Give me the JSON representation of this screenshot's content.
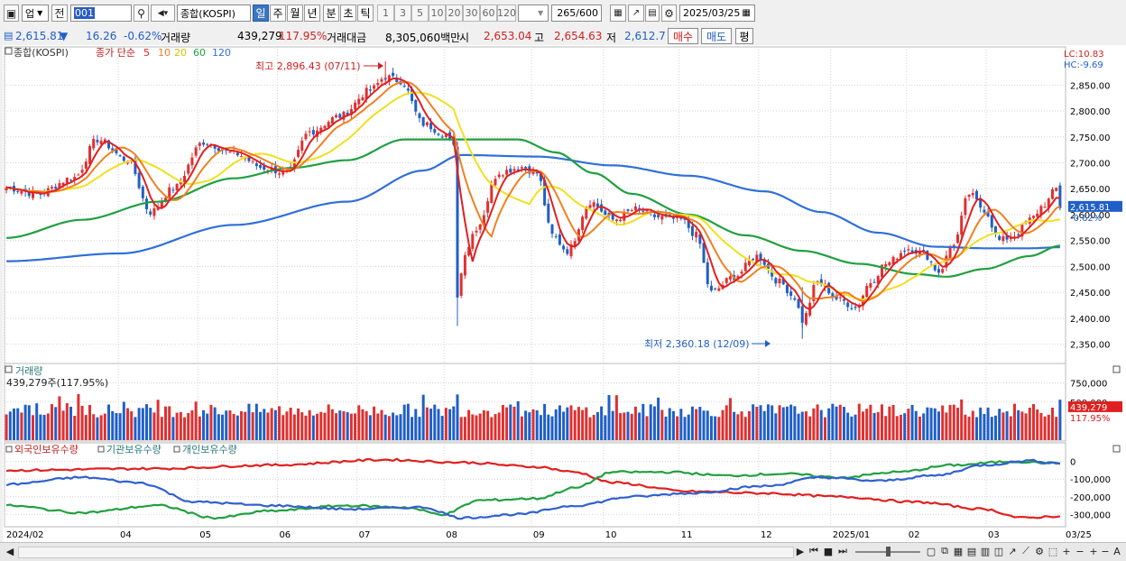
{
  "toolbar": {
    "market": "업",
    "prev_label": "전",
    "code": "001",
    "stock_name": "종합(KOSPI)",
    "period_tabs": [
      "일",
      "주",
      "월",
      "년",
      "분",
      "초",
      "틱"
    ],
    "active_tab": "일",
    "minute_values": [
      "1",
      "3",
      "5",
      "10",
      "20",
      "30",
      "60",
      "120"
    ],
    "count": "265",
    "count_max": "/600",
    "date": "2025/03/25"
  },
  "quote": {
    "price": "2,615.81",
    "arrow": "▼",
    "change": "16.26",
    "change_pct": "-0.62%",
    "volume_label": "거래량",
    "volume": "439,279",
    "volume_ratio": "117.95%",
    "amount_label": "거래대금",
    "amount": "8,305,060백만",
    "open_label": "시",
    "open": "2,653.04",
    "high_label": "고",
    "high": "2,654.63",
    "low_label": "저",
    "low": "2,612.7",
    "buy": "매수",
    "sell": "매도",
    "eval": "평"
  },
  "chart_data": [
    {
      "type": "candlestick",
      "title": "종합(KOSPI)",
      "legend": [
        "종가 단순",
        "5",
        "10",
        "20",
        "60",
        "120"
      ],
      "colors": {
        "up": "#e03030",
        "down": "#1f5fc8",
        "ma5": "#e02020",
        "ma10": "#f08020",
        "ma20": "#f0e020",
        "ma60": "#20a040",
        "ma120": "#3070d8"
      },
      "y_ticks": [
        "2,850.00",
        "2,800.00",
        "2,750.00",
        "2,700.00",
        "2,650.00",
        "2,600.00",
        "2,550.00",
        "2,500.00",
        "2,450.00",
        "2,400.00",
        "2,350.00"
      ],
      "ylim": [
        2330,
        2915
      ],
      "lc": "LC:10.83",
      "hc": "HC:-9.69",
      "high_annotation": "최고 2,896.43 (07/11)",
      "low_annotation": "최저 2,360.18 (12/09)",
      "last_label": "2,615.81",
      "last_pct": "-0.62%",
      "close_anchors": [
        [
          0,
          2652
        ],
        [
          8,
          2640
        ],
        [
          18,
          2672
        ],
        [
          24,
          2745
        ],
        [
          32,
          2705
        ],
        [
          38,
          2605
        ],
        [
          44,
          2650
        ],
        [
          52,
          2740
        ],
        [
          60,
          2718
        ],
        [
          68,
          2690
        ],
        [
          74,
          2680
        ],
        [
          80,
          2760
        ],
        [
          88,
          2790
        ],
        [
          96,
          2840
        ],
        [
          100,
          2866
        ],
        [
          104,
          2858
        ],
        [
          110,
          2775
        ],
        [
          116,
          2754
        ],
        [
          118,
          2730
        ],
        [
          119,
          2445
        ],
        [
          121,
          2528
        ],
        [
          124,
          2575
        ],
        [
          130,
          2682
        ],
        [
          136,
          2692
        ],
        [
          140,
          2680
        ],
        [
          144,
          2560
        ],
        [
          148,
          2530
        ],
        [
          154,
          2625
        ],
        [
          160,
          2590
        ],
        [
          166,
          2610
        ],
        [
          172,
          2595
        ],
        [
          178,
          2590
        ],
        [
          182,
          2560
        ],
        [
          186,
          2450
        ],
        [
          192,
          2480
        ],
        [
          198,
          2520
        ],
        [
          204,
          2470
        ],
        [
          208,
          2440
        ],
        [
          210,
          2395
        ],
        [
          214,
          2470
        ],
        [
          220,
          2435
        ],
        [
          224,
          2420
        ],
        [
          228,
          2470
        ],
        [
          232,
          2505
        ],
        [
          238,
          2535
        ],
        [
          242,
          2525
        ],
        [
          246,
          2490
        ],
        [
          250,
          2545
        ],
        [
          254,
          2640
        ],
        [
          258,
          2610
        ],
        [
          262,
          2550
        ],
        [
          266,
          2560
        ],
        [
          270,
          2590
        ],
        [
          274,
          2620
        ],
        [
          277,
          2650
        ],
        [
          278,
          2615
        ]
      ],
      "ma60_anchors": [
        [
          0,
          2555
        ],
        [
          20,
          2590
        ],
        [
          40,
          2625
        ],
        [
          60,
          2670
        ],
        [
          75,
          2690
        ],
        [
          90,
          2705
        ],
        [
          105,
          2745
        ],
        [
          120,
          2745
        ],
        [
          135,
          2745
        ],
        [
          145,
          2720
        ],
        [
          155,
          2680
        ],
        [
          165,
          2640
        ],
        [
          180,
          2600
        ],
        [
          195,
          2560
        ],
        [
          210,
          2530
        ],
        [
          225,
          2505
        ],
        [
          240,
          2485
        ],
        [
          248,
          2480
        ],
        [
          258,
          2495
        ],
        [
          270,
          2520
        ],
        [
          278,
          2540
        ]
      ],
      "ma120_anchors": [
        [
          0,
          2510
        ],
        [
          30,
          2525
        ],
        [
          60,
          2580
        ],
        [
          90,
          2625
        ],
        [
          110,
          2685
        ],
        [
          120,
          2715
        ],
        [
          140,
          2712
        ],
        [
          160,
          2695
        ],
        [
          180,
          2675
        ],
        [
          200,
          2645
        ],
        [
          215,
          2605
        ],
        [
          230,
          2565
        ],
        [
          245,
          2538
        ],
        [
          258,
          2535
        ],
        [
          270,
          2535
        ],
        [
          278,
          2537
        ]
      ],
      "x_labels": [
        {
          "i": 0,
          "t": "2024/02"
        },
        {
          "i": 30,
          "t": "04"
        },
        {
          "i": 51,
          "t": "05"
        },
        {
          "i": 72,
          "t": "06"
        },
        {
          "i": 93,
          "t": "07"
        },
        {
          "i": 116,
          "t": "08"
        },
        {
          "i": 139,
          "t": "09"
        },
        {
          "i": 158,
          "t": "10"
        },
        {
          "i": 178,
          "t": "11"
        },
        {
          "i": 199,
          "t": "12"
        },
        {
          "i": 218,
          "t": "2025/01"
        },
        {
          "i": 238,
          "t": "02"
        },
        {
          "i": 259,
          "t": "03"
        },
        {
          "i": 280,
          "t": "03/25"
        }
      ]
    },
    {
      "type": "bar",
      "title": "거래량",
      "value_label": "439,279주(117.95%)",
      "y_ticks": [
        "750,000",
        "500,000"
      ],
      "ylim": [
        0,
        900000
      ],
      "last_value": "439,279",
      "last_pct": "117.95%"
    },
    {
      "type": "line",
      "series": [
        {
          "name": "외국인보유수량",
          "color": "#e02020",
          "anchors": [
            [
              0,
              -50000
            ],
            [
              40,
              -40000
            ],
            [
              70,
              -20000
            ],
            [
              100,
              10000
            ],
            [
              120,
              -5000
            ],
            [
              140,
              -30000
            ],
            [
              150,
              -60000
            ],
            [
              160,
              -120000
            ],
            [
              180,
              -170000
            ],
            [
              200,
              -180000
            ],
            [
              220,
              -200000
            ],
            [
              240,
              -230000
            ],
            [
              258,
              -270000
            ],
            [
              268,
              -320000
            ],
            [
              278,
              -310000
            ]
          ]
        },
        {
          "name": "기관보유수량",
          "color": "#20a040",
          "anchors": [
            [
              0,
              -250000
            ],
            [
              20,
              -290000
            ],
            [
              40,
              -250000
            ],
            [
              55,
              -320000
            ],
            [
              70,
              -280000
            ],
            [
              90,
              -250000
            ],
            [
              105,
              -260000
            ],
            [
              115,
              -300000
            ],
            [
              125,
              -220000
            ],
            [
              140,
              -210000
            ],
            [
              150,
              -150000
            ],
            [
              160,
              -60000
            ],
            [
              175,
              -60000
            ],
            [
              190,
              -80000
            ],
            [
              205,
              -70000
            ],
            [
              220,
              -90000
            ],
            [
              235,
              -60000
            ],
            [
              250,
              -20000
            ],
            [
              265,
              0
            ],
            [
              278,
              -10000
            ]
          ]
        },
        {
          "name": "개인보유수량",
          "color": "#3060d0",
          "anchors": [
            [
              0,
              -130000
            ],
            [
              20,
              -90000
            ],
            [
              35,
              -120000
            ],
            [
              50,
              -230000
            ],
            [
              70,
              -250000
            ],
            [
              90,
              -270000
            ],
            [
              110,
              -260000
            ],
            [
              120,
              -320000
            ],
            [
              135,
              -300000
            ],
            [
              150,
              -250000
            ],
            [
              165,
              -200000
            ],
            [
              180,
              -180000
            ],
            [
              200,
              -140000
            ],
            [
              215,
              -90000
            ],
            [
              230,
              -110000
            ],
            [
              245,
              -80000
            ],
            [
              258,
              -20000
            ],
            [
              270,
              5000
            ],
            [
              278,
              -10000
            ]
          ]
        }
      ],
      "y_ticks": [
        "0",
        "-100,000",
        "-200,000",
        "-300,000"
      ],
      "ylim": [
        -360000,
        60000
      ]
    }
  ]
}
